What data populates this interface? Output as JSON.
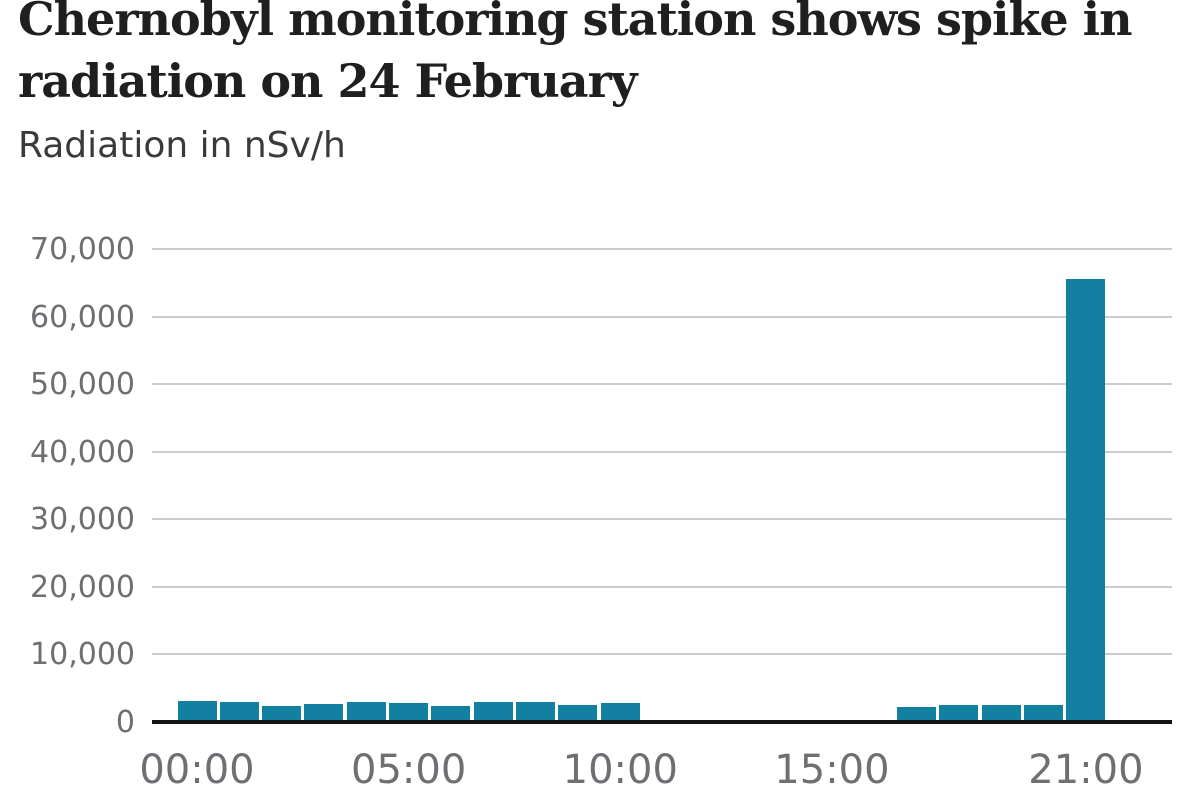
{
  "header": {
    "title": "Chernobyl monitoring station shows spike in radiation on 24 February",
    "subtitle": "Radiation in nSv/h"
  },
  "chart_data": {
    "type": "bar",
    "title": "Chernobyl monitoring station shows spike in radiation on 24 February",
    "subtitle": "Radiation in nSv/h",
    "unit": "nSv/h",
    "bar_color": "#1480a1",
    "grid": true,
    "x_axis": {
      "kind": "time-of-day-hours",
      "range_hours": [
        0,
        23
      ],
      "tick_hours": [
        0,
        5,
        10,
        15,
        21
      ],
      "tick_labels": [
        "00:00",
        "05:00",
        "10:00",
        "15:00",
        "21:00"
      ]
    },
    "y_axis": {
      "min": 0,
      "max": 70000,
      "tick_interval": 10000,
      "tick_values": [
        0,
        10000,
        20000,
        30000,
        40000,
        50000,
        60000,
        70000
      ],
      "tick_labels": [
        "0",
        "10,000",
        "20,000",
        "30,000",
        "40,000",
        "50,000",
        "60,000",
        "70,000"
      ]
    },
    "bars": [
      {
        "hour": 0,
        "value": 3100
      },
      {
        "hour": 1,
        "value": 2950
      },
      {
        "hour": 2,
        "value": 2300
      },
      {
        "hour": 3,
        "value": 2650
      },
      {
        "hour": 4,
        "value": 2900
      },
      {
        "hour": 5,
        "value": 2800
      },
      {
        "hour": 6,
        "value": 2400
      },
      {
        "hour": 7,
        "value": 3000
      },
      {
        "hour": 8,
        "value": 2900
      },
      {
        "hour": 9,
        "value": 2500
      },
      {
        "hour": 10,
        "value": 2800
      },
      {
        "hour": 17,
        "value": 2200
      },
      {
        "hour": 18,
        "value": 2500
      },
      {
        "hour": 19,
        "value": 2500
      },
      {
        "hour": 20,
        "value": 2500
      },
      {
        "hour": 21,
        "value": 65500
      }
    ]
  },
  "colors": {
    "bar": "#1480a1",
    "gridline": "#cccccc",
    "axis_line": "#141414",
    "tick_text": "#6e6e73",
    "title_text": "#1f1f1f",
    "subtitle_text": "#3a3a3a"
  }
}
